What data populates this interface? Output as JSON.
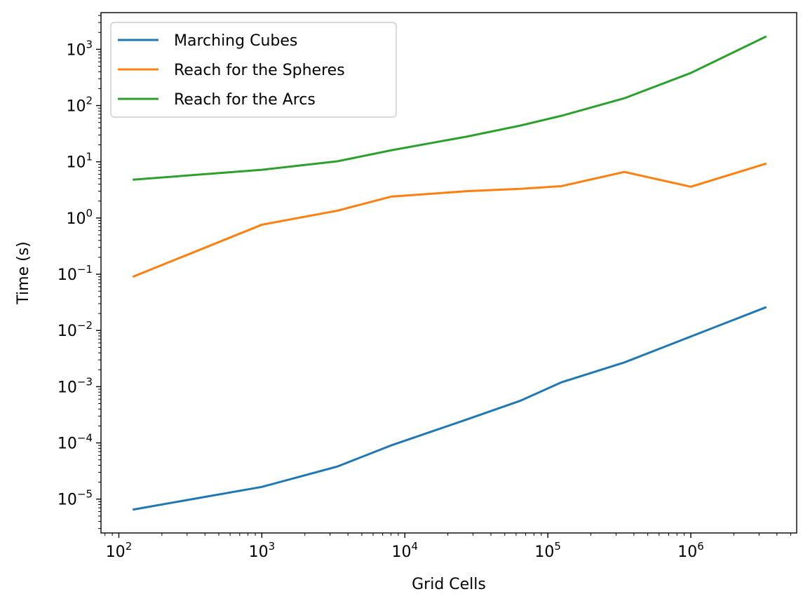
{
  "chart_data": {
    "type": "line",
    "xscale": "log",
    "yscale": "log",
    "xlabel": "Grid Cells",
    "ylabel": "Time (s)",
    "xlim": [
      75,
      5500000
    ],
    "ylim": [
      2.5e-06,
      4500
    ],
    "xticks": [
      {
        "value": 100,
        "base": "10",
        "exp": "2"
      },
      {
        "value": 1000,
        "base": "10",
        "exp": "3"
      },
      {
        "value": 10000,
        "base": "10",
        "exp": "4"
      },
      {
        "value": 100000,
        "base": "10",
        "exp": "5"
      },
      {
        "value": 1000000,
        "base": "10",
        "exp": "6"
      }
    ],
    "yticks": [
      {
        "value": 1e-05,
        "base": "10",
        "exp": "−5"
      },
      {
        "value": 0.0001,
        "base": "10",
        "exp": "−4"
      },
      {
        "value": 0.001,
        "base": "10",
        "exp": "−3"
      },
      {
        "value": 0.01,
        "base": "10",
        "exp": "−2"
      },
      {
        "value": 0.1,
        "base": "10",
        "exp": "−1"
      },
      {
        "value": 1,
        "base": "10",
        "exp": "0"
      },
      {
        "value": 10,
        "base": "10",
        "exp": "1"
      },
      {
        "value": 100,
        "base": "10",
        "exp": "2"
      },
      {
        "value": 1000,
        "base": "10",
        "exp": "3"
      }
    ],
    "legend_position": "top-left",
    "grid": false,
    "x": [
      125,
      1000,
      3375,
      8000,
      27000,
      64000,
      125000,
      343000,
      1000000,
      3375000
    ],
    "series": [
      {
        "name": "Marching Cubes",
        "color": "#1f77b4",
        "values": [
          6.5e-06,
          1.65e-05,
          3.8e-05,
          9e-05,
          0.00026,
          0.00056,
          0.0012,
          0.0027,
          0.0078,
          0.026
        ]
      },
      {
        "name": "Reach for the Spheres",
        "color": "#ff7f0e",
        "values": [
          0.09,
          0.76,
          1.35,
          2.4,
          3.0,
          3.3,
          3.7,
          6.6,
          3.6,
          9.3
        ]
      },
      {
        "name": "Reach for the Arcs",
        "color": "#2ca02c",
        "values": [
          4.8,
          7.2,
          10.2,
          16.0,
          28.0,
          44.0,
          66.0,
          135.0,
          380.0,
          1700.0
        ]
      }
    ]
  }
}
